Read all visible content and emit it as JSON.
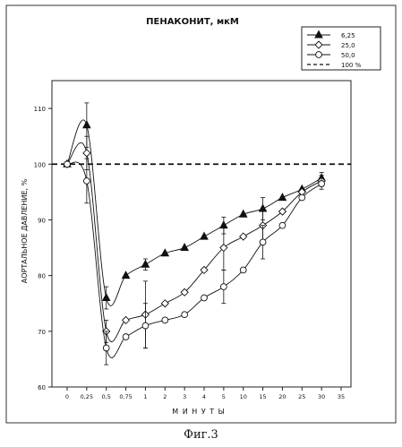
{
  "chart_data": {
    "type": "line",
    "title": "ПЕНАКОНИТ, мкМ",
    "xlabel": "М И Н У Т Ы",
    "ylabel": "АОРТАЛЬНОЕ ДАВЛЕНИЕ, %",
    "x_ticks": [
      "0",
      "0,25",
      "0,5",
      "0,75",
      "1",
      "2",
      "3",
      "4",
      "5",
      "10",
      "15",
      "20",
      "25",
      "30",
      "35"
    ],
    "y_ticks": [
      60,
      70,
      80,
      90,
      100,
      110
    ],
    "ylim": [
      60,
      115
    ],
    "legend_position": "top-right",
    "series": [
      {
        "name": "6,25",
        "marker": "triangle",
        "x": [
          "0",
          "0,25",
          "0,5",
          "0,75",
          "1",
          "2",
          "3",
          "4",
          "5",
          "10",
          "15",
          "20",
          "25",
          "30"
        ],
        "values": [
          100,
          107,
          76,
          80,
          82,
          84,
          85,
          87,
          89,
          91,
          92,
          94,
          95.5,
          97.5
        ],
        "error": [
          0,
          4,
          2,
          0,
          1,
          0,
          0,
          0,
          1.5,
          0,
          2,
          0,
          0,
          1
        ]
      },
      {
        "name": "25,0",
        "marker": "diamond",
        "x": [
          "0",
          "0,25",
          "0,5",
          "0,75",
          "1",
          "2",
          "3",
          "4",
          "5",
          "10",
          "15",
          "20",
          "25",
          "30"
        ],
        "values": [
          100,
          102,
          70,
          72,
          73,
          75,
          77,
          81,
          85,
          87,
          89,
          91.5,
          95,
          97
        ],
        "error": [
          0,
          3,
          2,
          0,
          6,
          0,
          0,
          0,
          4,
          0,
          3,
          0,
          0,
          1
        ]
      },
      {
        "name": "50,0",
        "marker": "circle",
        "x": [
          "0",
          "0,25",
          "0,5",
          "0,75",
          "1",
          "2",
          "3",
          "4",
          "5",
          "10",
          "15",
          "20",
          "25",
          "30"
        ],
        "values": [
          100,
          97,
          67,
          69,
          71,
          72,
          73,
          76,
          78,
          81,
          86,
          89,
          94,
          96.5
        ],
        "error": [
          0,
          4,
          3,
          0,
          4,
          0,
          0,
          0,
          3,
          0,
          3,
          0,
          0,
          1
        ]
      }
    ],
    "reference_line": {
      "name": "100 %",
      "value": 100,
      "style": "dashed"
    },
    "grid": false
  },
  "caption": "Фиг.3"
}
